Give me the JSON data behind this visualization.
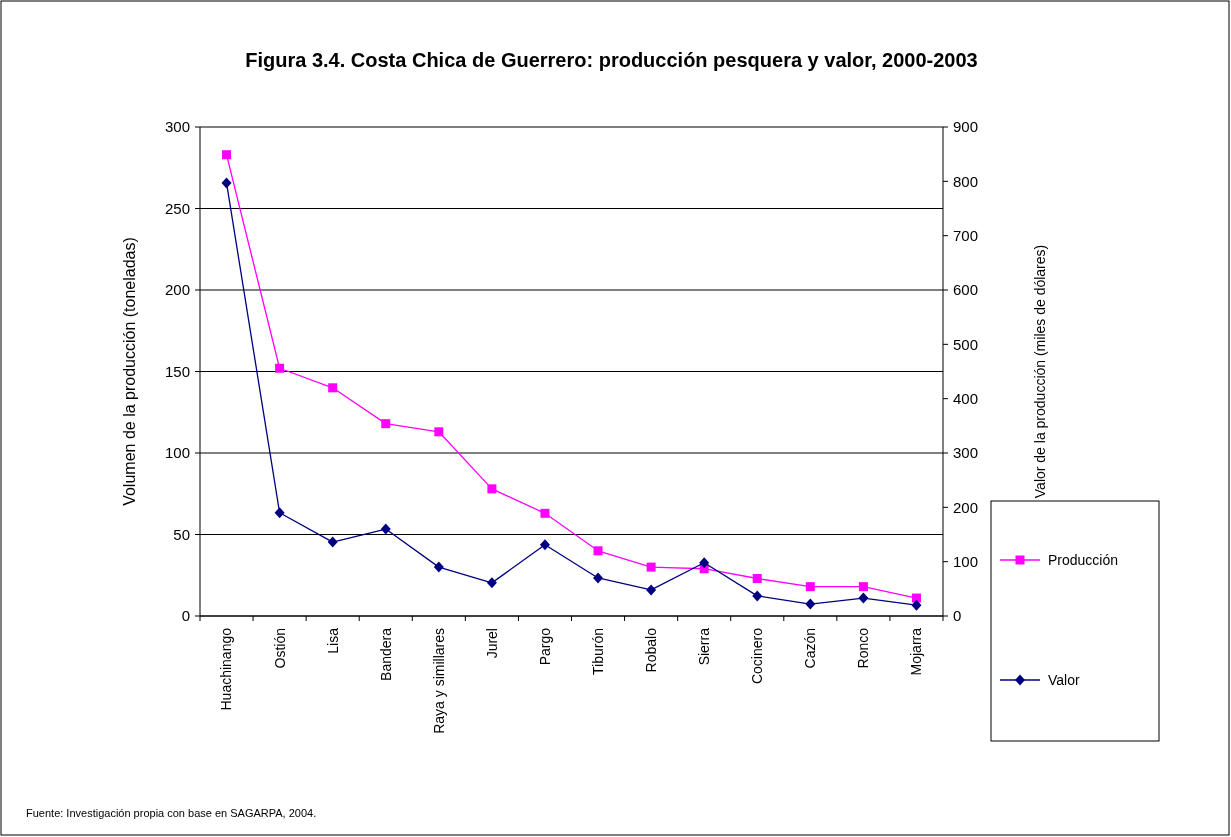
{
  "chart_data": {
    "type": "line",
    "title": "Figura 3.4. Costa Chica de Guerrero: producción pesquera y valor, 2000-2003",
    "ylabel": "Volumen de la producción (toneladas)",
    "y2label": "Valor de la producción (miles de dólares)",
    "categories": [
      "Huachinango",
      "Ostión",
      "Lisa",
      "Bandera",
      "Raya y simillares",
      "Jurel",
      "Pargo",
      "Tiburón",
      "Robalo",
      "Sierra",
      "Cocinero",
      "Cazón",
      "Ronco",
      "Mojarra"
    ],
    "series": [
      {
        "name": "Producción",
        "color": "#ff00ff",
        "marker": "square",
        "values": [
          283,
          152,
          140,
          118,
          113,
          78,
          63,
          40,
          30,
          29,
          23,
          18,
          18,
          11
        ]
      },
      {
        "name": "Valor",
        "color": "#000080",
        "marker": "diamond",
        "axis": "y2",
        "values": [
          797,
          190,
          136,
          160,
          90,
          61,
          131,
          70,
          48,
          98,
          37,
          22,
          33,
          20
        ]
      }
    ],
    "ylim": [
      0,
      300
    ],
    "yticks": [
      0,
      50,
      100,
      150,
      200,
      250,
      300
    ],
    "y2lim": [
      0,
      900
    ],
    "y2ticks": [
      0,
      100,
      200,
      300,
      400,
      500,
      600,
      700,
      800,
      900
    ],
    "grid": "y",
    "legend": "right",
    "annotations": [
      "Fuente: Investigación propia con base en SAGARPA, 2004."
    ]
  }
}
